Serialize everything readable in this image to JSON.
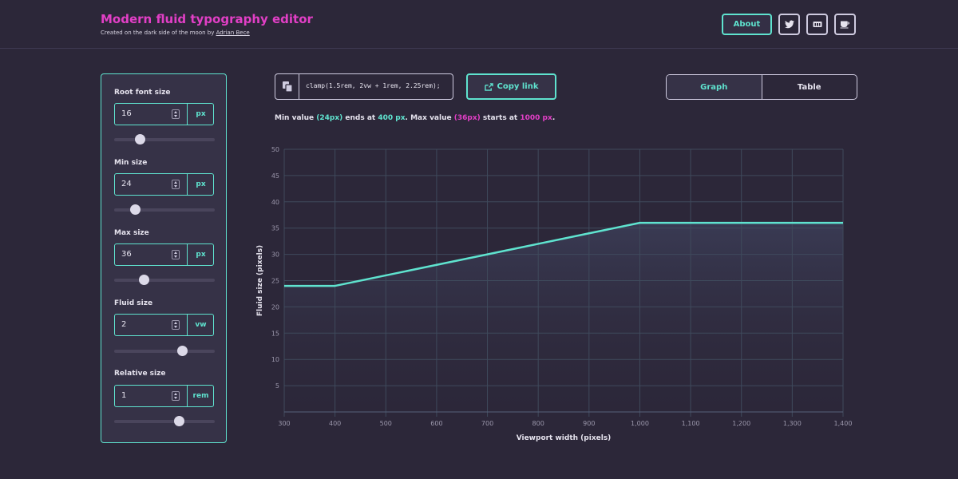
{
  "header": {
    "title": "Modern fluid typography editor",
    "subtitle_prefix": "Created on the dark side of the moon by",
    "author": "Adrian Bece",
    "about_label": "About",
    "icons": [
      "twitter-icon",
      "github-icon",
      "coffee-icon"
    ]
  },
  "sidebar": {
    "fields": [
      {
        "label": "Root font size",
        "value": "16",
        "unit": "px",
        "slider": 0.26
      },
      {
        "label": "Min size",
        "value": "24",
        "unit": "px",
        "slider": 0.21
      },
      {
        "label": "Max size",
        "value": "36",
        "unit": "px",
        "slider": 0.3
      },
      {
        "label": "Fluid size",
        "value": "2",
        "unit": "vw",
        "slider": 0.68
      },
      {
        "label": "Relative size",
        "value": "1",
        "unit": "rem",
        "slider": 0.65
      }
    ]
  },
  "toolbar": {
    "clamp": "clamp(1.5rem, 2vw + 1rem, 2.25rem);",
    "copy_label": "Copy link",
    "graph_label": "Graph",
    "table_label": "Table",
    "active_view": "Graph"
  },
  "summary": {
    "t1": "Min value",
    "min_value": "(24px)",
    "t2": "ends at",
    "min_end": "400 px",
    "t3": ". Max value",
    "max_value": "(36px)",
    "t4": "starts at",
    "max_start": "1000 px",
    "t5": "."
  },
  "colors": {
    "accent": "#5fe3cf",
    "brand": "#e23fc6",
    "background": "#2c2739"
  },
  "chart_data": {
    "type": "line",
    "xlabel": "Viewport width (pixels)",
    "ylabel": "Fluid size (pixels)",
    "xlim": [
      300,
      1400
    ],
    "ylim": [
      0,
      50
    ],
    "x_ticks": [
      300,
      400,
      500,
      600,
      700,
      800,
      900,
      1000,
      1100,
      1200,
      1300,
      1400
    ],
    "x_tick_labels": [
      "300",
      "400",
      "500",
      "600",
      "700",
      "800",
      "900",
      "1,000",
      "1,100",
      "1,200",
      "1,300",
      "1,400"
    ],
    "y_ticks": [
      5,
      10,
      15,
      20,
      25,
      30,
      35,
      40,
      45,
      50
    ],
    "y_tick_labels": [
      "5",
      "10",
      "15",
      "20",
      "25",
      "30",
      "35",
      "40",
      "45",
      "50"
    ],
    "grid": true,
    "series": [
      {
        "x": [
          300,
          400,
          500,
          600,
          700,
          800,
          900,
          1000,
          1100,
          1200,
          1300,
          1400
        ],
        "y": [
          24,
          24,
          26,
          28,
          30,
          32,
          34,
          36,
          36,
          36,
          36,
          36
        ],
        "color": "#5fe3cf"
      }
    ]
  }
}
